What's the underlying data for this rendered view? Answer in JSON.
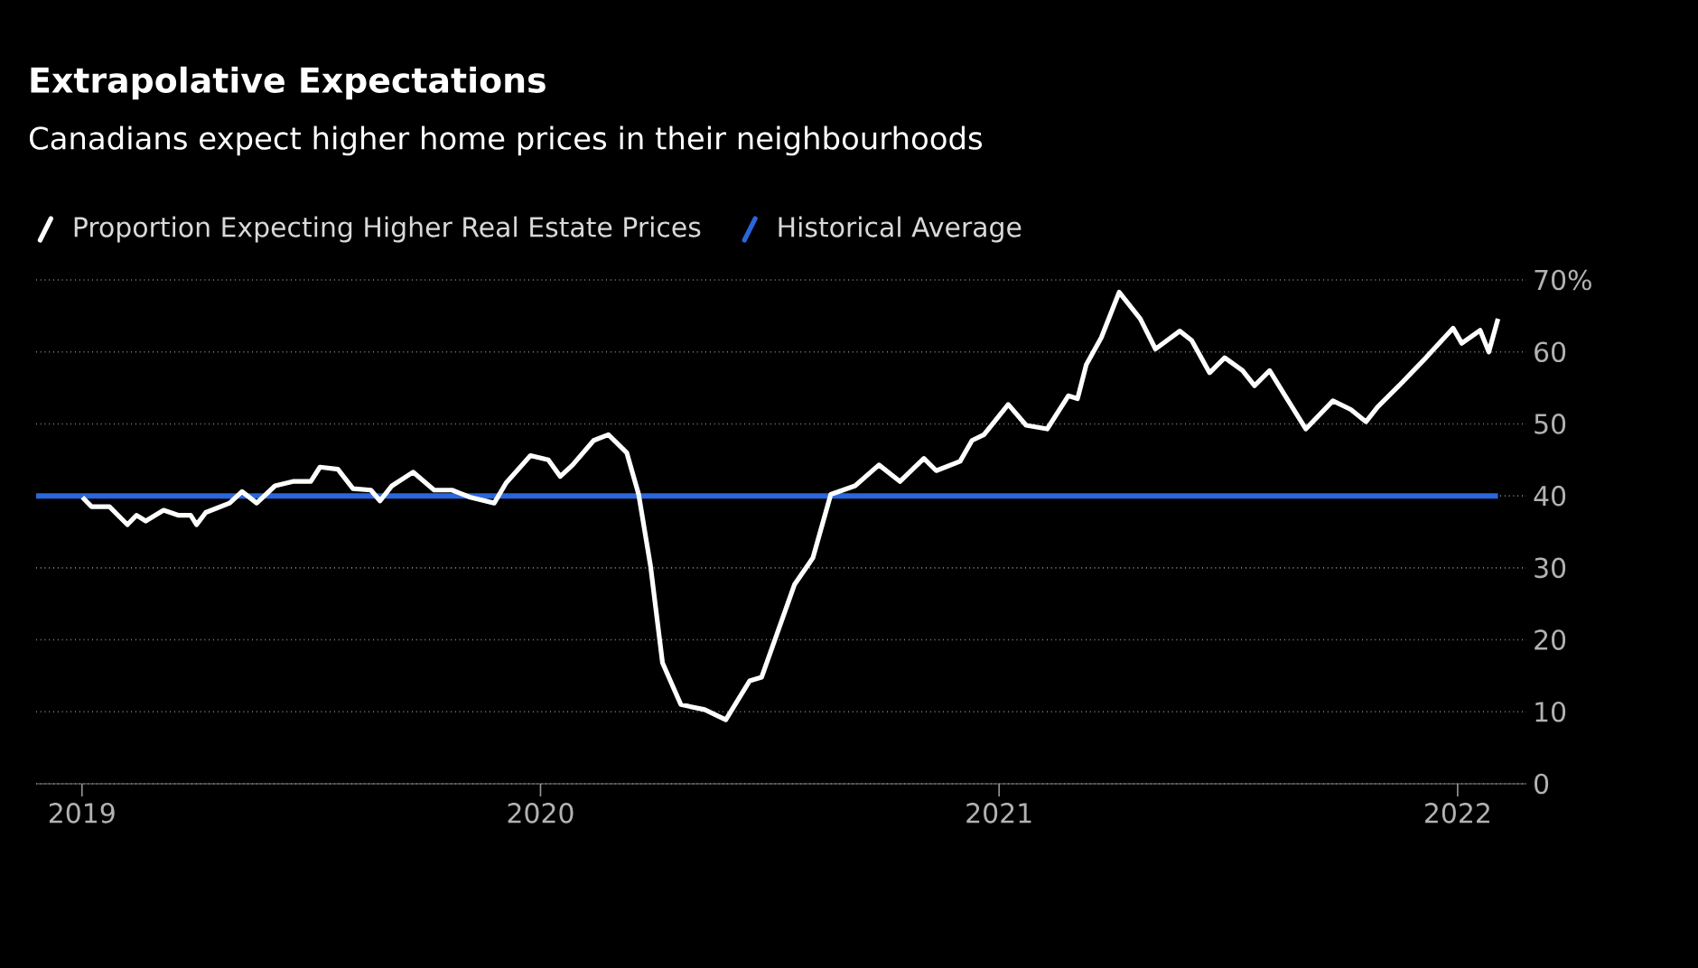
{
  "chart_data": {
    "type": "line",
    "title": "Extrapolative Expectations",
    "subtitle": "Canadians expect higher home prices in their neighbourhoods",
    "x": [
      2019.001,
      2019.021,
      2019.06,
      2019.099,
      2019.119,
      2019.139,
      2019.178,
      2019.211,
      2019.237,
      2019.25,
      2019.27,
      2019.322,
      2019.349,
      2019.381,
      2019.421,
      2019.46,
      2019.499,
      2019.519,
      2019.558,
      2019.591,
      2019.63,
      2019.65,
      2019.676,
      2019.722,
      2019.768,
      2019.807,
      2019.847,
      2019.899,
      2019.925,
      2019.978,
      2020.017,
      2020.043,
      2020.07,
      2020.116,
      2020.148,
      2020.188,
      2020.214,
      2020.24,
      2020.266,
      2020.306,
      2020.358,
      2020.404,
      2020.456,
      2020.482,
      2020.554,
      2020.594,
      2020.633,
      2020.686,
      2020.738,
      2020.784,
      2020.836,
      2020.863,
      2020.915,
      2020.941,
      2020.967,
      2021.02,
      2021.059,
      2021.105,
      2021.151,
      2021.171,
      2021.19,
      2021.223,
      2021.262,
      2021.308,
      2021.341,
      2021.394,
      2021.42,
      2021.459,
      2021.492,
      2021.531,
      2021.557,
      2021.59,
      2021.623,
      2021.669,
      2021.728,
      2021.767,
      2021.8,
      2021.826,
      2021.872,
      2021.931,
      2021.99,
      2022.009,
      2022.049,
      2022.068,
      2022.088
    ],
    "series": [
      {
        "name": "Proportion Expecting Higher Real Estate Prices",
        "color": "#ffffff",
        "values": [
          39.8,
          38.5,
          38.5,
          36,
          37.3,
          36.5,
          38,
          37.3,
          37.3,
          36,
          37.7,
          39,
          40.6,
          39,
          41.4,
          42,
          42,
          44,
          43.7,
          41,
          40.8,
          39.3,
          41.4,
          43.3,
          40.8,
          40.8,
          39.8,
          39,
          41.8,
          45.6,
          45,
          42.7,
          44.3,
          47.7,
          48.5,
          46,
          40.2,
          30.2,
          16.8,
          11,
          10.3,
          8.9,
          14.3,
          14.8,
          27.7,
          31.4,
          40.2,
          41.4,
          44.3,
          42,
          45.2,
          43.5,
          44.8,
          47.7,
          48.5,
          52.7,
          49.8,
          49.3,
          53.9,
          53.5,
          58.2,
          62,
          68.3,
          64.6,
          60.4,
          62.9,
          61.6,
          57.1,
          59.2,
          57.4,
          55.3,
          57.4,
          54,
          49.3,
          53.2,
          52,
          50.3,
          52.4,
          55.3,
          59.2,
          63.3,
          61.2,
          63,
          60,
          64.6
        ]
      }
    ],
    "ref_lines": [
      {
        "axis": "y",
        "value": 40,
        "label": "Historical Average",
        "color": "#2a66dc"
      }
    ],
    "xlim": [
      2018.9,
      2022.15
    ],
    "xticks": [
      2019,
      2020,
      2021,
      2022
    ],
    "ylim": [
      0,
      70
    ],
    "yticks": [
      0,
      10,
      20,
      30,
      40,
      50,
      60,
      {
        "value": 70,
        "label": "70%"
      }
    ],
    "grid": "y",
    "legend": "top left",
    "marker": "none",
    "line_style": "solid"
  }
}
